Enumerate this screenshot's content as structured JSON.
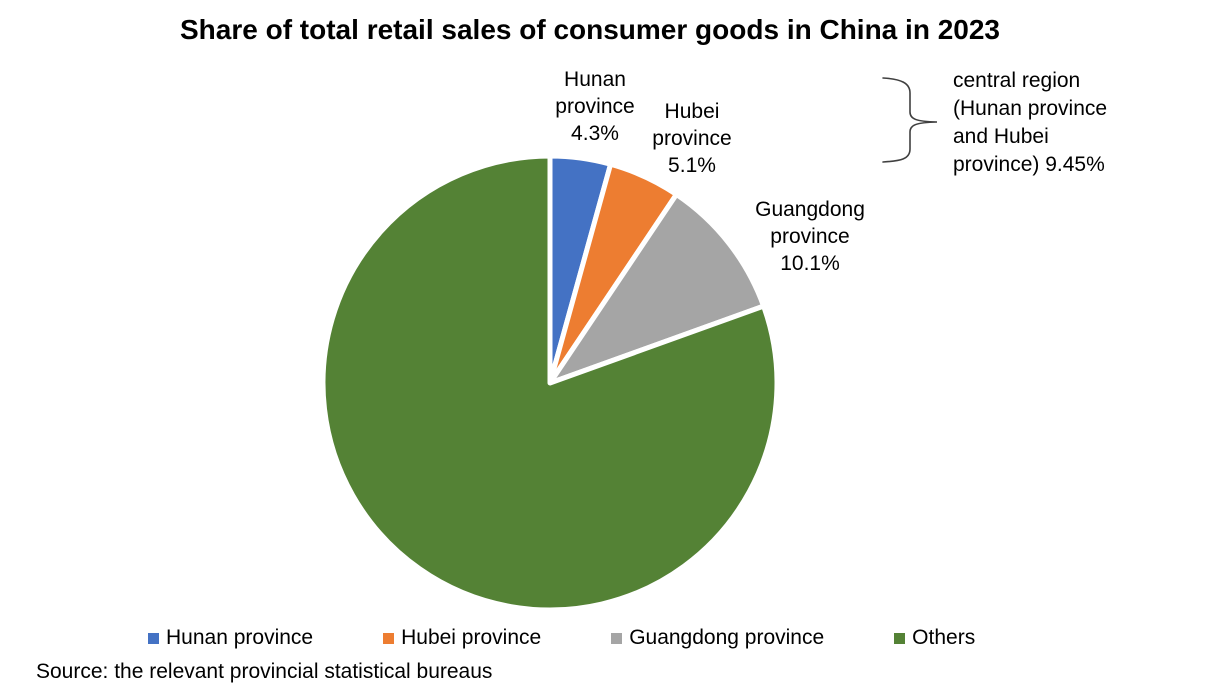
{
  "page": {
    "background": "#ffffff",
    "text_color": "#000000"
  },
  "chart_data": {
    "type": "pie",
    "title": "Share of total retail sales of consumer goods in China in 2023",
    "categories": [
      "Hunan province",
      "Hubei province",
      "Guangdong province",
      "Others"
    ],
    "values": [
      4.3,
      5.1,
      10.1,
      80.5
    ],
    "colors": [
      "#4472C4",
      "#ED7D31",
      "#A5A5A5",
      "#548235"
    ],
    "start_angle_deg": 0,
    "direction": "clockwise",
    "slice_border_color": "#ffffff",
    "legend_position": "bottom",
    "slice_labels": {
      "hunan": "Hunan\nprovince\n4.3%",
      "hubei": "Hubei\nprovince\n5.1%",
      "guangdong": "Guangdong\nprovince\n10.1%"
    },
    "annotation": {
      "text": "central region\n(Hunan province\nand Hubei\nprovince) 9.45%",
      "combined_value": "9.45%"
    }
  },
  "source_note": "Source: the relevant provincial statistical bureaus"
}
